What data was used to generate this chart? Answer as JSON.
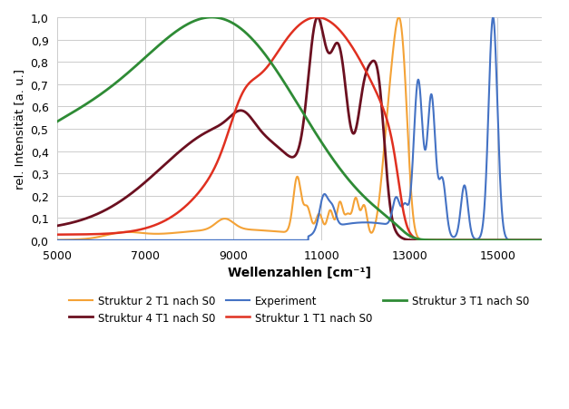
{
  "title": "",
  "xlabel": "Wellenzahlen [cm⁻¹]",
  "ylabel": "rel. Intensität [a. u.]",
  "xlim": [
    5000,
    16000
  ],
  "ylim": [
    0,
    1.0
  ],
  "xticks": [
    5000,
    7000,
    9000,
    11000,
    13000,
    15000
  ],
  "yticks": [
    0,
    0.1,
    0.2,
    0.3,
    0.4,
    0.5,
    0.6,
    0.7,
    0.8,
    0.9,
    1
  ],
  "legend": [
    {
      "label": "Struktur 2 T1 nach S0",
      "color": "#F4A236",
      "lw": 1.5
    },
    {
      "label": "Struktur 4 T1 nach S0",
      "color": "#6B1020",
      "lw": 2.0
    },
    {
      "label": "Experiment",
      "color": "#4472C4",
      "lw": 1.5
    },
    {
      "label": "Struktur 1 T1 nach S0",
      "color": "#E03020",
      "lw": 1.8
    },
    {
      "label": "Struktur 3 T1 nach S0",
      "color": "#2E8B35",
      "lw": 2.0
    }
  ],
  "background_color": "#FFFFFF",
  "grid_color": "#CCCCCC"
}
